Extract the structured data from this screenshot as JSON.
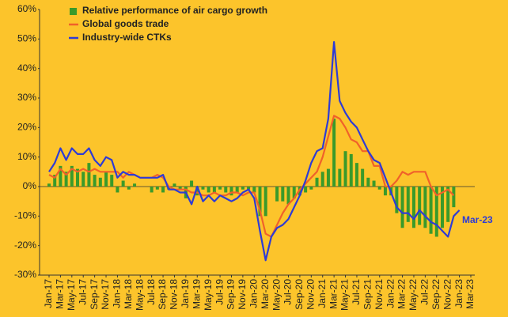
{
  "chart_data": {
    "type": "combo",
    "legend": {
      "corner": "top-left"
    },
    "annotations": [
      {
        "text": "Mar-23",
        "color": "#2e3bd6"
      }
    ],
    "categories": [
      "Jan-17",
      null,
      "Mar-17",
      null,
      "May-17",
      null,
      "Jul-17",
      null,
      "Sep-17",
      null,
      "Nov-17",
      null,
      "Jan-18",
      null,
      "Mar-18",
      null,
      "May-18",
      null,
      "Jul-18",
      null,
      "Sep-18",
      null,
      "Nov-18",
      null,
      "Jan-19",
      null,
      "Mar-19",
      null,
      "May-19",
      null,
      "Jul-19",
      null,
      "Sep-19",
      null,
      "Nov-19",
      null,
      "Jan-20",
      null,
      "Mar-20",
      null,
      "May-20",
      null,
      "Jul-20",
      null,
      "Sep-20",
      null,
      "Nov-20",
      null,
      "Jan-21",
      null,
      "Mar-21",
      null,
      "May-21",
      null,
      "Jul-21",
      null,
      "Sep-21",
      null,
      "Nov-21",
      null,
      "Jan-22",
      null,
      "Mar-22",
      null,
      "May-22",
      null,
      "Jul-22",
      null,
      "Sep-22",
      null,
      "Nov-22",
      null,
      "Jan-23",
      null,
      "Mar-23"
    ],
    "series": [
      {
        "name": "Relative performance of air cargo growth",
        "kind": "bar",
        "color": "#3a9a2a",
        "values": [
          1,
          4,
          7,
          5,
          7,
          6,
          5,
          8,
          4,
          3,
          5,
          4,
          -2,
          2,
          -1,
          1,
          0,
          0,
          -2,
          -1,
          -2,
          -1,
          1,
          -1,
          -4,
          2,
          -3,
          -1,
          -2,
          -2,
          -1,
          -2,
          -3,
          -2,
          -1,
          -1,
          -2,
          -10,
          -10,
          0,
          -5,
          -5,
          -6,
          -4,
          -3,
          -2,
          -1,
          3,
          5,
          6,
          23,
          6,
          12,
          11,
          8,
          6,
          3,
          2,
          -1,
          -3,
          -3,
          -9,
          -14,
          -12,
          -14,
          -13,
          -14,
          -16,
          -17,
          -14,
          -12,
          -7,
          null,
          null,
          null
        ]
      },
      {
        "name": "Global goods trade",
        "kind": "line",
        "color": "#f0612a",
        "values": [
          4,
          3,
          6,
          4,
          6,
          5,
          6,
          5,
          6,
          5,
          5,
          5,
          5,
          3,
          5,
          4,
          3,
          3,
          3,
          4,
          3,
          0,
          -1,
          -1,
          -1,
          -2,
          -2,
          -3,
          -3,
          -2,
          -3,
          -3,
          -2,
          -2,
          -3,
          -2,
          -2,
          -8,
          -16,
          -17,
          -13,
          -9,
          -6,
          -4,
          -1,
          1,
          3,
          5,
          10,
          17,
          24,
          23,
          20,
          16,
          15,
          12,
          12,
          7,
          7,
          0,
          0,
          2,
          5,
          4,
          5,
          5,
          5,
          0,
          -3,
          -2,
          -1,
          -3,
          null,
          null,
          null
        ]
      },
      {
        "name": "Industry-wide CTKs",
        "kind": "line",
        "color": "#2e3bd6",
        "values": [
          5,
          8,
          13,
          9,
          13,
          11,
          11,
          13,
          9,
          7,
          10,
          9,
          3,
          5,
          4,
          4,
          3,
          3,
          3,
          3,
          4,
          -1,
          -1,
          -2,
          -2,
          -6,
          0,
          -5,
          -3,
          -5,
          -3,
          -4,
          -5,
          -4,
          -2,
          -1,
          -4,
          -15,
          -25,
          -17,
          -14,
          -13,
          -11,
          -7,
          -3,
          2,
          8,
          12,
          13,
          23,
          49,
          29,
          25,
          22,
          20,
          16,
          12,
          9,
          8,
          3,
          -2,
          -7,
          -9,
          -9,
          -11,
          -8,
          -10,
          -12,
          -13,
          -15,
          -17,
          -10,
          -8,
          null,
          null
        ]
      }
    ],
    "ylim": [
      -30,
      60
    ],
    "yticks": [
      {
        "value": -30,
        "label": "-30%"
      },
      {
        "value": -20,
        "label": "-20%"
      },
      {
        "value": -10,
        "label": "-10%"
      },
      {
        "value": 0,
        "label": "0%"
      },
      {
        "value": 10,
        "label": "10%"
      },
      {
        "value": 20,
        "label": "20%"
      },
      {
        "value": 30,
        "label": "30%"
      },
      {
        "value": 40,
        "label": "40%"
      },
      {
        "value": 50,
        "label": "50%"
      },
      {
        "value": 60,
        "label": "60%"
      }
    ],
    "grid": false
  }
}
